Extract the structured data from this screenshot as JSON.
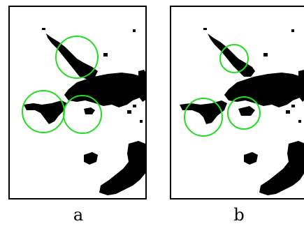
{
  "panels": [
    {
      "id": "a",
      "caption": "a"
    },
    {
      "id": "b",
      "caption": "b"
    }
  ],
  "colors": {
    "highlight_circle": "#22dd22",
    "blob": "#000000",
    "background": "#ffffff",
    "frame": "#000000"
  }
}
